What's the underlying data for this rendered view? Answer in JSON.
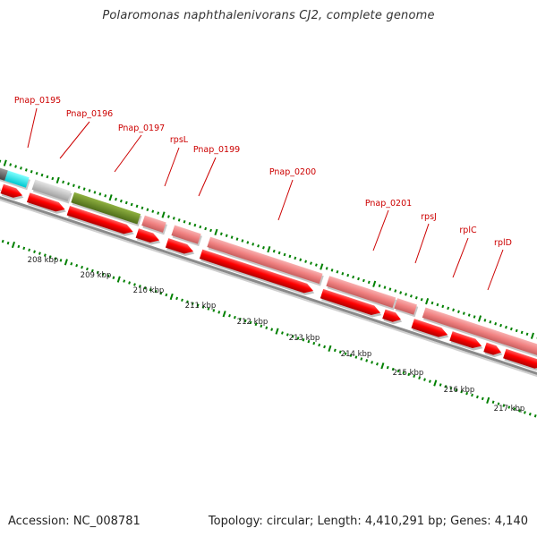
{
  "title": "Polaromonas naphthalenivorans CJ2, complete genome",
  "footer": {
    "accession": "Accession: NC_008781",
    "topology": "Topology: circular; Length: 4,410,291 bp; Genes: 4,140"
  },
  "colors": {
    "background": "#ffffff",
    "label": "#cc0000",
    "forward_gene": "#f08080",
    "reverse_gene": "#ff0000",
    "cds_gray": "#666666",
    "cds_cyan": "#00ffff",
    "cds_silver": "#c0c0c0",
    "cds_olive": "#6b8e23",
    "tick": "#008000",
    "backbone": "#808080"
  },
  "kbp_ticks": [
    "208 kbp",
    "209 kbp",
    "210 kbp",
    "211 kbp",
    "212 kbp",
    "213 kbp",
    "214 kbp",
    "215 kbp",
    "216 kbp",
    "217 kbp"
  ],
  "gene_labels": [
    "Pnap_0195",
    "Pnap_0196",
    "Pnap_0197",
    "rpsL",
    "Pnap_0199",
    "Pnap_0200",
    "Pnap_0201",
    "rpsJ",
    "rplC",
    "rplD"
  ]
}
